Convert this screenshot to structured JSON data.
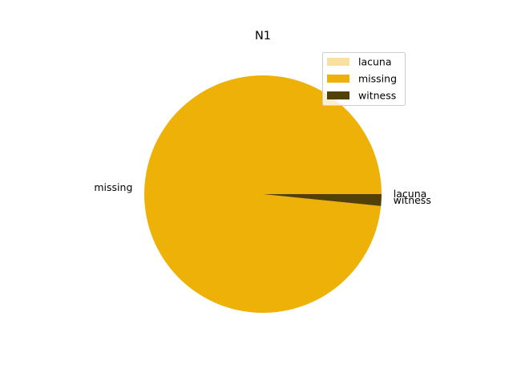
{
  "chart_data": {
    "type": "pie",
    "title": "N1",
    "slices": [
      {
        "label": "lacuna",
        "value": 0.0,
        "color": "#f8e0a0"
      },
      {
        "label": "missing",
        "value": 98.4,
        "color": "#edb108"
      },
      {
        "label": "witness",
        "value": 1.6,
        "color": "#533f08"
      }
    ],
    "start_angle_deg": 0,
    "direction": "counterclockwise",
    "legend": {
      "position": "top-right",
      "entries": [
        "lacuna",
        "missing",
        "witness"
      ]
    }
  }
}
